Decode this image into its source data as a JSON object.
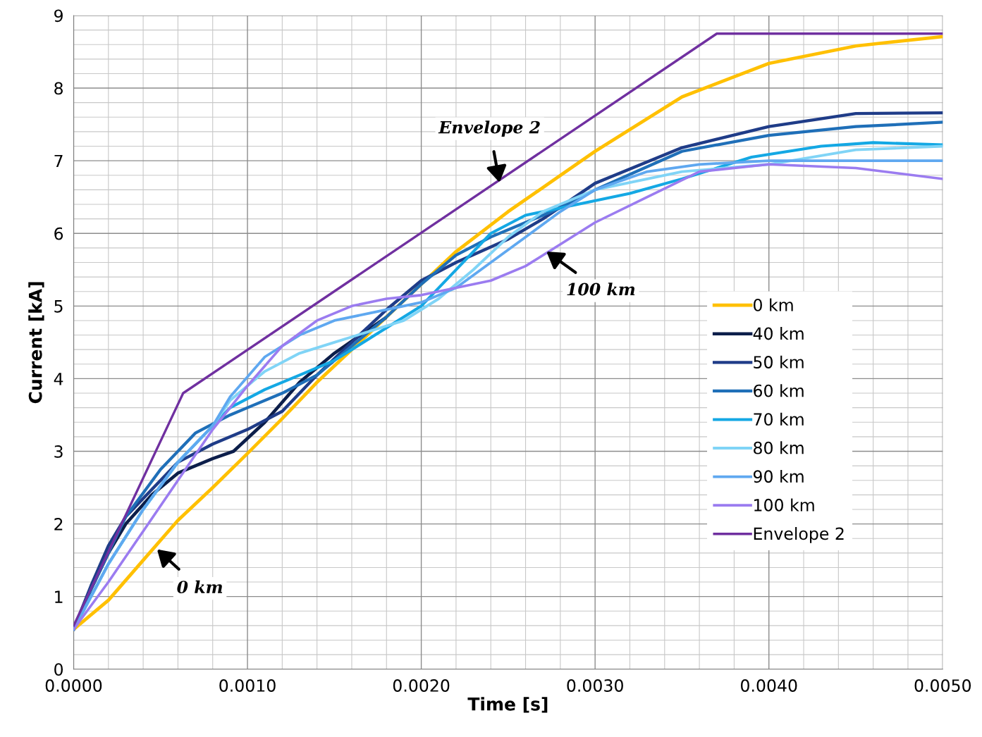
{
  "chart_data": {
    "type": "line",
    "xlabel": "Time [s]",
    "ylabel": "Current [kA]",
    "xlim": [
      0,
      0.005
    ],
    "ylim": [
      0,
      9
    ],
    "xticks": [
      {
        "value": 0,
        "label": "0.0000"
      },
      {
        "value": 0.001,
        "label": "0.0010"
      },
      {
        "value": 0.002,
        "label": "0.0020"
      },
      {
        "value": 0.003,
        "label": "0.0030"
      },
      {
        "value": 0.004,
        "label": "0.0040"
      },
      {
        "value": 0.005,
        "label": "0.0050"
      }
    ],
    "yticks": [
      0,
      1,
      2,
      3,
      4,
      5,
      6,
      7,
      8,
      9
    ],
    "grid": true,
    "legend": "right",
    "marker": "none",
    "line_style": "solid",
    "series": [
      {
        "name": "0 km",
        "color": "#ffc000",
        "x": [
          0,
          0.0002,
          0.0004,
          0.0006,
          0.0008,
          0.001,
          0.0012,
          0.0014,
          0.0016,
          0.0018,
          0.002,
          0.0022,
          0.0025,
          0.003,
          0.0035,
          0.004,
          0.0045,
          0.005
        ],
        "values": [
          0.55,
          0.95,
          1.5,
          2.05,
          2.5,
          2.97,
          3.45,
          3.95,
          4.4,
          4.85,
          5.3,
          5.75,
          6.3,
          7.13,
          7.88,
          8.34,
          8.58,
          8.71
        ]
      },
      {
        "name": "40 km",
        "color": "#0c1e4a",
        "x": [
          0,
          0.0001,
          0.0002,
          0.0003,
          0.00045,
          0.0006,
          0.0008,
          0.00092,
          0.0011,
          0.0013,
          0.0015,
          0.00165,
          0.00179
        ],
        "values": [
          0.55,
          1.1,
          1.6,
          2.0,
          2.4,
          2.7,
          2.9,
          3.0,
          3.4,
          3.95,
          4.35,
          4.6,
          4.83
        ]
      },
      {
        "name": "50 km",
        "color": "#1f3c88",
        "x": [
          0,
          0.0001,
          0.0002,
          0.0003,
          0.0005,
          0.0006,
          0.0008,
          0.001,
          0.0012,
          0.0014,
          0.0016,
          0.0018,
          0.002,
          0.0022,
          0.0025,
          0.0027,
          0.003,
          0.0035,
          0.004,
          0.0045,
          0.005
        ],
        "values": [
          0.55,
          1.15,
          1.7,
          2.1,
          2.6,
          2.85,
          3.1,
          3.3,
          3.55,
          4.05,
          4.5,
          4.95,
          5.35,
          5.6,
          5.92,
          6.2,
          6.69,
          7.18,
          7.47,
          7.65,
          7.66
        ]
      },
      {
        "name": "60 km",
        "color": "#1f6fb8",
        "x": [
          0,
          0.0001,
          0.0002,
          0.0003,
          0.0005,
          0.0007,
          0.0009,
          0.001,
          0.0012,
          0.0014,
          0.0016,
          0.0018,
          0.002,
          0.0022,
          0.0024,
          0.0026,
          0.0028,
          0.003,
          0.0035,
          0.004,
          0.0045,
          0.005
        ],
        "values": [
          0.55,
          1.1,
          1.6,
          2.1,
          2.75,
          3.25,
          3.5,
          3.6,
          3.8,
          4.05,
          4.45,
          4.85,
          5.3,
          5.7,
          5.95,
          6.15,
          6.35,
          6.6,
          7.13,
          7.35,
          7.47,
          7.53
        ]
      },
      {
        "name": "70 km",
        "color": "#14a8e4",
        "x": [
          0,
          0.0002,
          0.0004,
          0.0006,
          0.0008,
          0.0009,
          0.0011,
          0.0013,
          0.0015,
          0.0016,
          0.0018,
          0.002,
          0.0022,
          0.0024,
          0.0026,
          0.0029,
          0.0032,
          0.0035,
          0.0039,
          0.0043,
          0.0046,
          0.005
        ],
        "values": [
          0.55,
          1.45,
          2.2,
          2.85,
          3.35,
          3.6,
          3.85,
          4.05,
          4.25,
          4.4,
          4.7,
          5.0,
          5.5,
          6.0,
          6.25,
          6.4,
          6.55,
          6.75,
          7.05,
          7.2,
          7.25,
          7.22
        ]
      },
      {
        "name": "80 km",
        "color": "#80d4f6",
        "x": [
          0,
          0.0002,
          0.0004,
          0.0006,
          0.0008,
          0.0009,
          0.0011,
          0.0013,
          0.0015,
          0.0017,
          0.0019,
          0.0021,
          0.0023,
          0.0025,
          0.0027,
          0.003,
          0.0035,
          0.004,
          0.0045,
          0.005
        ],
        "values": [
          0.55,
          1.45,
          2.2,
          2.85,
          3.35,
          3.7,
          4.1,
          4.35,
          4.5,
          4.65,
          4.8,
          5.1,
          5.5,
          5.95,
          6.3,
          6.6,
          6.85,
          6.95,
          7.15,
          7.2
        ]
      },
      {
        "name": "90 km",
        "color": "#5fa8f0",
        "x": [
          0,
          0.0002,
          0.0004,
          0.0006,
          0.0008,
          0.0009,
          0.0011,
          0.0013,
          0.0015,
          0.0017,
          0.002,
          0.0022,
          0.0024,
          0.0026,
          0.0028,
          0.003,
          0.0033,
          0.0036,
          0.004,
          0.0045,
          0.005
        ],
        "values": [
          0.55,
          1.45,
          2.2,
          2.85,
          3.35,
          3.75,
          4.3,
          4.6,
          4.8,
          4.9,
          5.05,
          5.25,
          5.6,
          5.95,
          6.3,
          6.6,
          6.85,
          6.95,
          7.0,
          7.0,
          7.0
        ]
      },
      {
        "name": "100 km",
        "color": "#9b7cf0",
        "x": [
          0,
          0.0002,
          0.0004,
          0.0006,
          0.0008,
          0.001,
          0.0012,
          0.0014,
          0.0016,
          0.0018,
          0.002,
          0.0022,
          0.0024,
          0.0026,
          0.0028,
          0.003,
          0.0033,
          0.0036,
          0.004,
          0.0045,
          0.005
        ],
        "values": [
          0.55,
          1.2,
          1.9,
          2.6,
          3.3,
          3.9,
          4.45,
          4.8,
          5.0,
          5.1,
          5.15,
          5.25,
          5.35,
          5.55,
          5.85,
          6.15,
          6.5,
          6.85,
          6.95,
          6.9,
          6.75
        ]
      },
      {
        "name": "Envelope 2",
        "color": "#7030a0",
        "x": [
          0,
          0.00063,
          0.0037,
          0.005
        ],
        "values": [
          0.6,
          3.8,
          8.75,
          8.75
        ]
      }
    ],
    "annotations": [
      {
        "text": "Envelope 2",
        "x": 0.00245,
        "y": 6.7
      },
      {
        "text": "0 km",
        "x": 0.00048,
        "y": 1.65
      },
      {
        "text": "100 km",
        "x": 0.00272,
        "y": 5.75
      }
    ]
  }
}
